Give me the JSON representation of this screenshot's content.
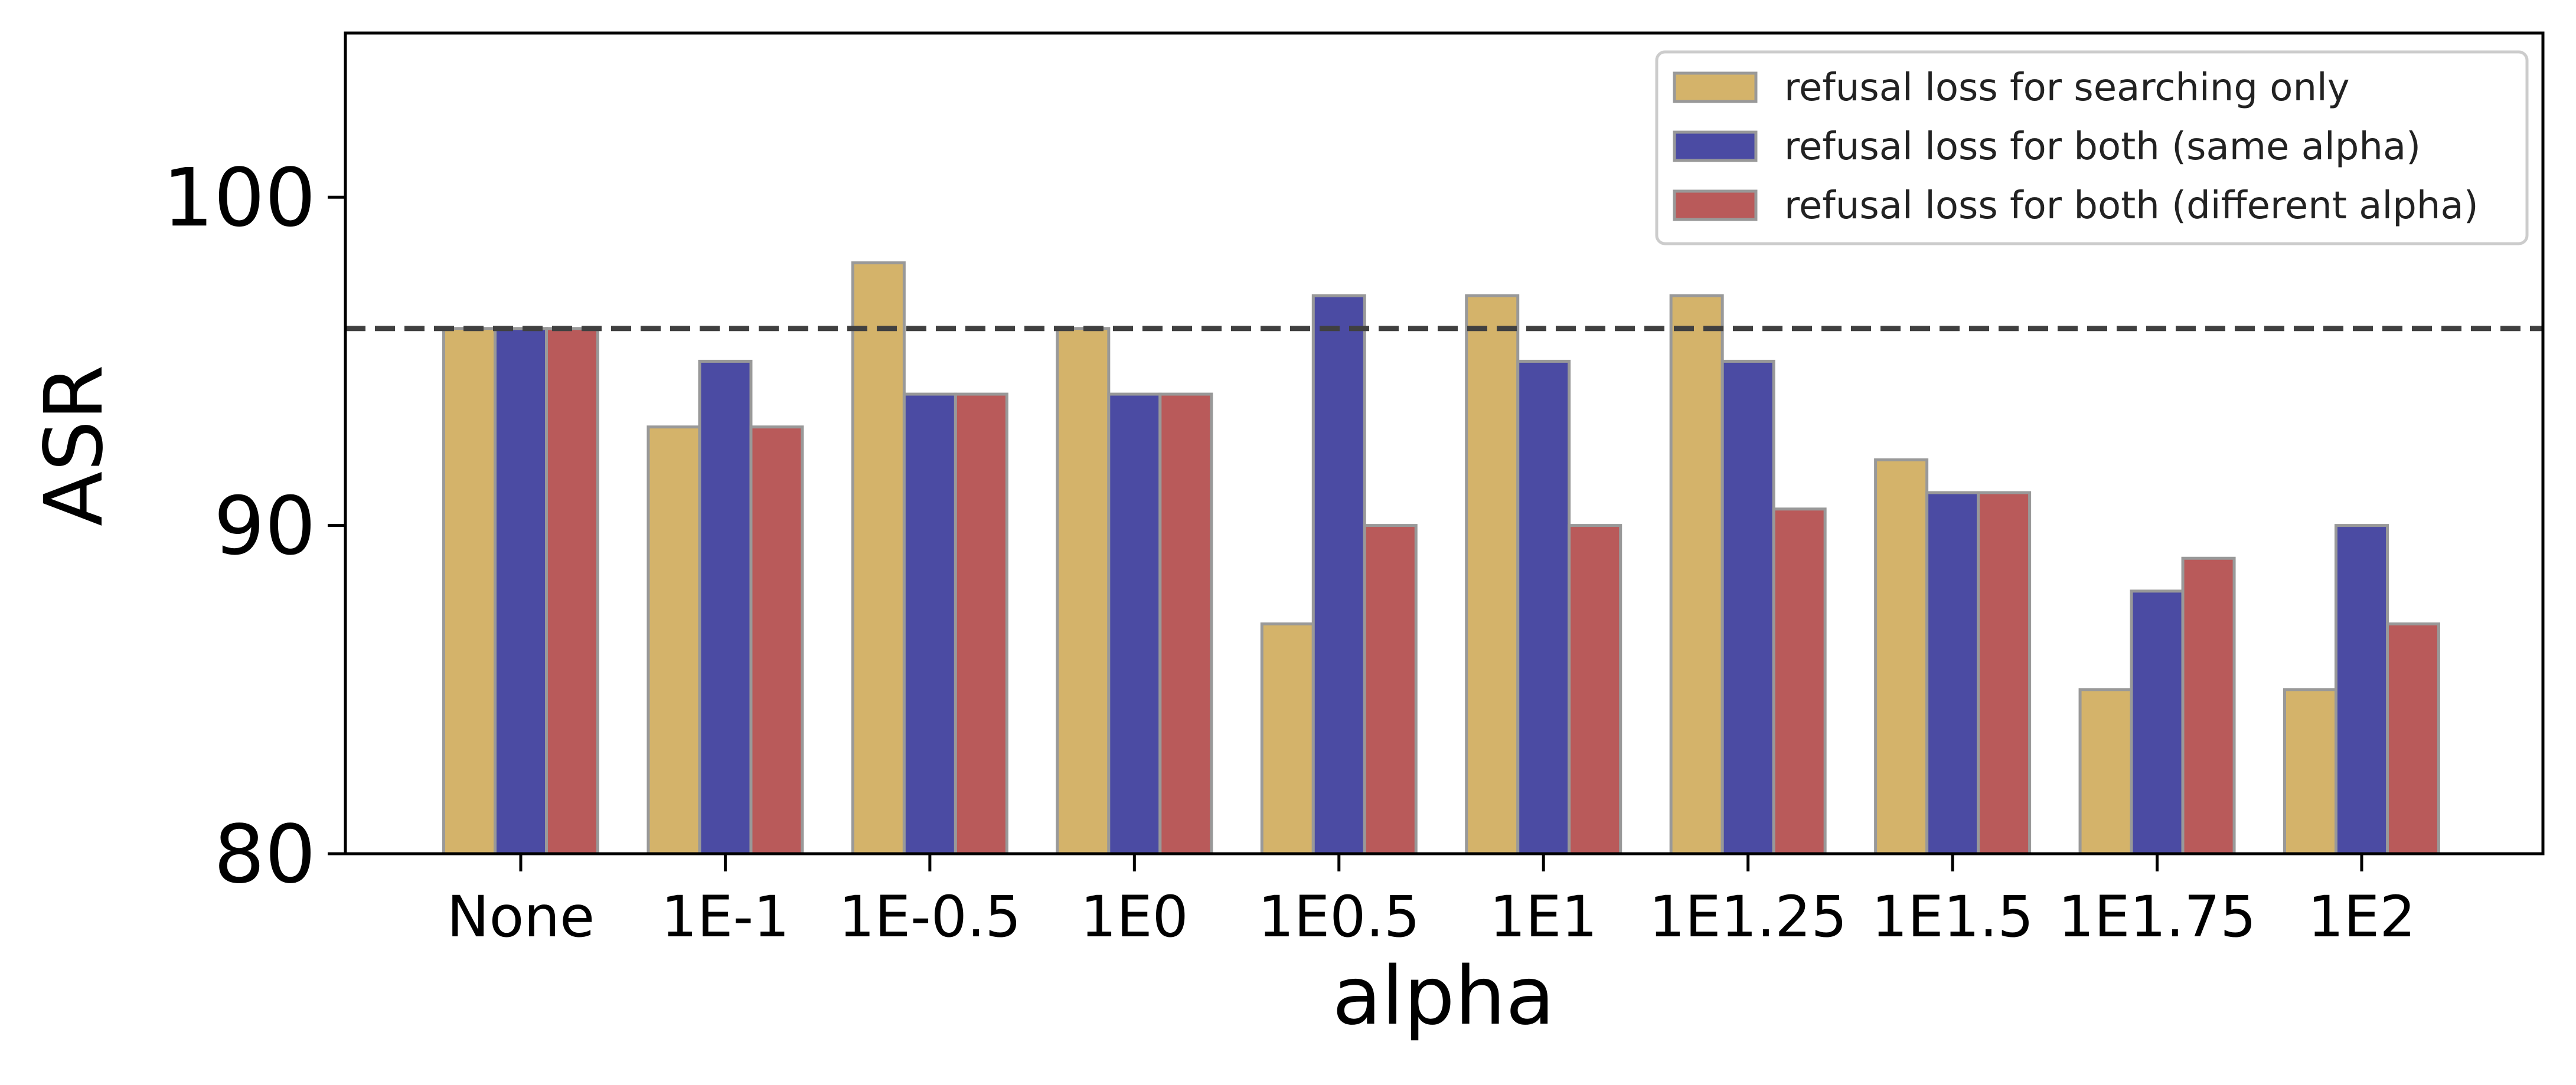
{
  "chart_data": {
    "type": "bar",
    "title": "",
    "xlabel": "alpha",
    "ylabel": "ASR",
    "ylim": [
      80,
      105
    ],
    "yticks": [
      80,
      90,
      100
    ],
    "categories": [
      "None",
      "1E-1",
      "1E-0.5",
      "1E0",
      "1E0.5",
      "1E1",
      "1E1.25",
      "1E1.5",
      "1E1.75",
      "1E2"
    ],
    "series": [
      {
        "name": "refusal loss for searching only",
        "color": "#d4b36a",
        "values": [
          96,
          93,
          98,
          96,
          87,
          97,
          97,
          92,
          85,
          85
        ]
      },
      {
        "name": "refusal loss for both (same alpha)",
        "color": "#4b4ba3",
        "values": [
          96,
          95,
          94,
          94,
          97,
          95,
          95,
          91,
          88,
          90
        ]
      },
      {
        "name": "refusal loss for both (different alpha)",
        "color": "#b95a5a",
        "values": [
          96,
          93,
          94,
          94,
          90,
          90,
          90.5,
          91,
          89,
          87
        ]
      }
    ],
    "reference_line": {
      "value": 96,
      "style": "dashed",
      "color": "#404040"
    },
    "legend_position": "top-right",
    "grid": false,
    "bar_edge_color": "#999999"
  }
}
